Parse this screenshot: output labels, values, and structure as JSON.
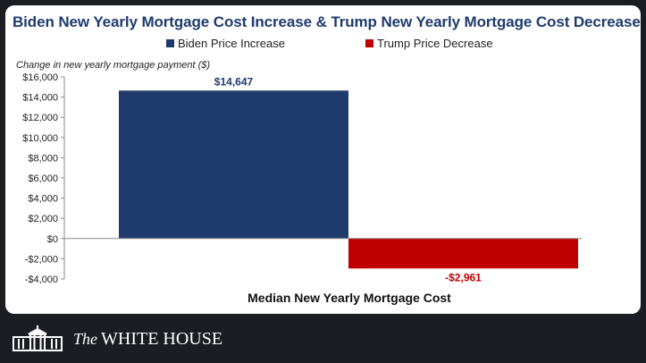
{
  "chart_data": {
    "type": "bar",
    "title": "Biden New Yearly Mortgage Cost Increase & Trump New Yearly Mortgage Cost Decrease",
    "xlabel": "Median New Yearly Mortgage Cost",
    "ylabel": "Change in new yearly mortgage payment ($)",
    "ylim": [
      -4000,
      16000
    ],
    "yticks": [
      16000,
      14000,
      12000,
      10000,
      8000,
      6000,
      4000,
      2000,
      0,
      -2000,
      -4000
    ],
    "ytick_labels": [
      "$16,000",
      "$14,000",
      "$12,000",
      "$10,000",
      "$8,000",
      "$6,000",
      "$4,000",
      "$2,000",
      "$0",
      "-$2,000",
      "-$4,000"
    ],
    "grid": false,
    "legend_position": "top",
    "series": [
      {
        "name": "Biden Price Increase",
        "values": [
          14647
        ],
        "label": "$14,647",
        "color": "#1f3b6e"
      },
      {
        "name": "Trump Price Decrease",
        "values": [
          -2961
        ],
        "label": "-$2,961",
        "color": "#c00000"
      }
    ]
  },
  "footer": {
    "the": "The",
    "org": "WHITE HOUSE",
    "logo": "white-house-building-icon"
  },
  "colors": {
    "background": "#1b1d23",
    "card": "#ffffff",
    "title": "#1f3b6e",
    "axis": "#888888"
  }
}
